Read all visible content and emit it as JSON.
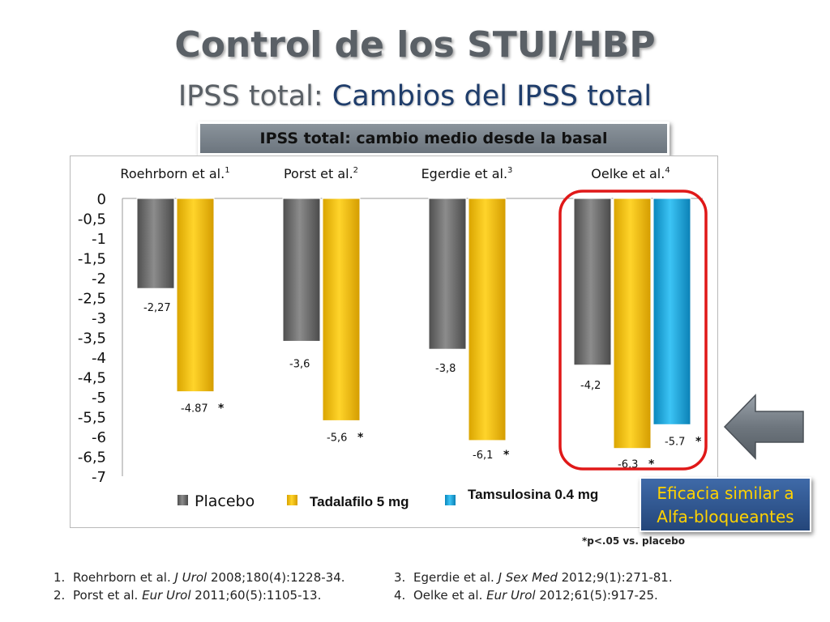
{
  "title": "Control de los STUI/HBP",
  "subtitle": {
    "part1": "IPSS total: ",
    "part2": "Cambios del IPSS total"
  },
  "banner": "IPSS total:  cambio medio desde la basal",
  "efficacy": {
    "line1": "Eficacia similar a",
    "line2": "Alfa-bloqueantes"
  },
  "footnote": "*p<.05 vs. placebo",
  "references": [
    {
      "num": "1.",
      "author": "Roehrborn et al. ",
      "journal": "J Urol",
      "rest": " 2008;180(4):1228-34."
    },
    {
      "num": "2.",
      "author": "Porst et al. ",
      "journal": "Eur Urol",
      "rest": " 2011;60(5):1105-13."
    },
    {
      "num": "3.",
      "author": "Egerdie et al. ",
      "journal": "J Sex Med",
      "rest": " 2012;9(1):271-81."
    },
    {
      "num": "4.",
      "author": "Oelke et al. ",
      "journal": "Eur Urol",
      "rest": " 2012;61(5):917-25."
    }
  ],
  "colors": {
    "placebo": "#707070",
    "tadalafilo": "#f5c400",
    "tamsulosina": "#1aa8e0",
    "highlight": "#e01818"
  },
  "chart_data": {
    "type": "bar",
    "ylim": [
      -7,
      0
    ],
    "y_ticks": [
      "0",
      "-0,5",
      "-1",
      "-1,5",
      "-2",
      "-2,5",
      "-3",
      "-3,5",
      "-4",
      "-4,5",
      "-5",
      "-5,5",
      "-6",
      "-6,5",
      "-7"
    ],
    "grid": false,
    "legend_position": "bottom",
    "categories": [
      {
        "label": "Roehrborn  et al.",
        "sup": "1"
      },
      {
        "label": "Porst et al.",
        "sup": "2"
      },
      {
        "label": "Egerdie  et al.",
        "sup": "3"
      },
      {
        "label": "Oelke  et al.",
        "sup": "4"
      }
    ],
    "series": [
      {
        "name": "Placebo",
        "color": "#707070",
        "values": [
          -2.27,
          -3.6,
          -3.8,
          -4.2
        ],
        "labels": [
          "-2,27",
          "-3,6",
          "-3,8",
          "-4,2"
        ],
        "significant": [
          false,
          false,
          false,
          false
        ]
      },
      {
        "name": "Tadalafilo 5 mg",
        "color": "#f5c400",
        "values": [
          -4.87,
          -5.6,
          -6.1,
          -6.3
        ],
        "labels": [
          "-4.87",
          "-5,6",
          "-6,1",
          "-6,3"
        ],
        "significant": [
          true,
          true,
          true,
          true
        ]
      },
      {
        "name": "Tamsulosina 0.4 mg",
        "color": "#1aa8e0",
        "values": [
          null,
          null,
          null,
          -5.7
        ],
        "labels": [
          null,
          null,
          null,
          "-5.7"
        ],
        "significant": [
          false,
          false,
          false,
          true
        ]
      }
    ],
    "significance_marker": "*",
    "highlighted_group": 3
  }
}
